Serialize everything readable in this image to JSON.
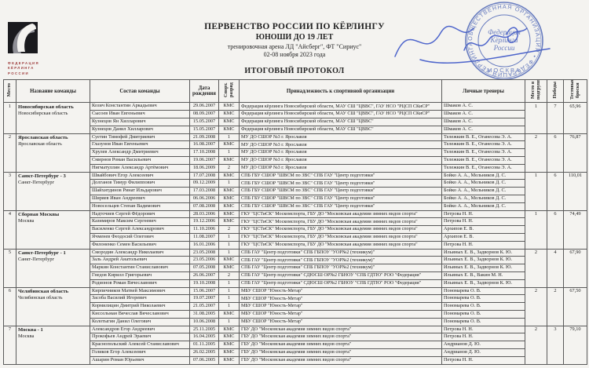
{
  "page": {
    "title1": "ПЕРВЕНСТВО РОССИИ ПО КЁРЛИНГУ",
    "title2": "ЮНОШИ ДО 19 ЛЕТ",
    "subtitle1": "тренировочная арена ЛД \"Айсберг\", ФТ \"Сириус\"",
    "subtitle2": "02-08 ноября 2023 года",
    "protocol_title": "ИТОГОВЫЙ ПРОТОКОЛ"
  },
  "logo": {
    "line1": "ФЕДЕРАЦИЯ",
    "line2": "КЁРЛИНГА",
    "line3": "РОССИИ"
  },
  "stamp": {
    "color": "#4a63b5",
    "ring_text": "ОБЩЕСТВЕННАЯ ОРГАНИЗАЦИЯ • ФЕДЕРАЦИЯ КЁРЛИНГА РОССИИ •",
    "center_line1": "Федерация",
    "center_line2": "Кёрлинга",
    "center_line3": "России",
    "city": "МОСКВА"
  },
  "table": {
    "headers": {
      "place": "Место",
      "team": "Название команды",
      "roster": "Состав команды",
      "dob": "Дата рождения",
      "rank": "Спорт. разряд",
      "org": "Принадлежность к спортивной организации",
      "coaches": "Личные тренеры",
      "group_place": "Место в подгруппе",
      "wins": "Победы",
      "throws": "Тестовые броски"
    },
    "teams": [
      {
        "place": "1",
        "name": "Новосибирская область",
        "region": "Новосибирская область",
        "group_place": "1",
        "wins": "7",
        "test_throws": "65,96",
        "members": [
          {
            "name": "Козич Константин Аркадьевич",
            "dob": "29.06.2007",
            "rank": "КМС",
            "org": "Федерация кёрлинга Новосибирской области, МАУ СШ \"ЦВВС\", ГАУ НСО \"РЦСП СКиСР\"",
            "coaches": "Шмаков А. С."
          },
          {
            "name": "Сысоев Иван Евгеньевич",
            "dob": "08.09.2007",
            "rank": "КМС",
            "org": "Федерация кёрлинга Новосибирской области, МАУ СШ \"ЦВВС\", ГАУ НСО \"РЦСП СКиСР\"",
            "coaches": "Шмаков А. С."
          },
          {
            "name": "Кузнецов Ян Хилларович",
            "dob": "15.05.2007",
            "rank": "КМС",
            "org": "Федерация кёрлинга Новосибирской области, МАУ СШ \"ЦВВС\"",
            "coaches": "Шмаков А. С."
          },
          {
            "name": "Кузнецов Данил Хилларович",
            "dob": "15.05.2007",
            "rank": "КМС",
            "org": "Федерация кёрлинга Новосибирской области, МАУ СШ \"ЦВВС\"",
            "coaches": "Шмаков А. С."
          }
        ]
      },
      {
        "place": "2",
        "name": "Ярославская область",
        "region": "Ярославская область",
        "group_place": "2",
        "wins": "6",
        "test_throws": "76,87",
        "members": [
          {
            "name": "Суетин Тимофей Дмитриевич",
            "dob": "21.09.2008",
            "rank": "1",
            "org": "МУ ДО СШОР №3 г. Ярославля",
            "coaches": "Тележкин В. Е., Оганесова Э. А."
          },
          {
            "name": "Глазунов Иван Евгеньевич",
            "dob": "16.08.2007",
            "rank": "КМС",
            "org": "МУ ДО СШОР №3 г. Ярославля",
            "coaches": "Тележкин В. Е., Оганесова Э. А."
          },
          {
            "name": "Хрулев Александр Дмитриевич",
            "dob": "17.10.2008",
            "rank": "1",
            "org": "МУ ДО СШОР №3 г. Ярославля",
            "coaches": "Тележкин В. Е., Оганесова Э. А."
          },
          {
            "name": "Смирнов Роман Васильевич",
            "dob": "19.06.2007",
            "rank": "КМС",
            "org": "МУ ДО СШОР №3 г. Ярославля",
            "coaches": "Тележкин В. Е., Оганесова Э. А."
          },
          {
            "name": "Нигматуллин Александр Артёмович",
            "dob": "18.06.2009",
            "rank": "2",
            "org": "МУ ДО СШОР №3 г. Ярославля",
            "coaches": "Тележкин В. Е., Оганесова Э. А."
          }
        ]
      },
      {
        "place": "3",
        "name": "Санкт-Петербург - 3",
        "region": "Санкт-Петербург",
        "group_place": "1",
        "wins": "6",
        "test_throws": "110,01",
        "members": [
          {
            "name": "Швайбович Егор Алексеевич",
            "dob": "17.07.2008",
            "rank": "КМС",
            "org": "СПБ ГБУ СШОР \"ШВСМ по ЗВС\" СПБ ГАУ \"Центр подготовки\"",
            "coaches": "Бойко А. А., Мельников Д. С."
          },
          {
            "name": "Долганов Тимур Филиппович",
            "dob": "09.12.2009",
            "rank": "1",
            "org": "СПБ ГБУ СШОР \"ШВСМ по ЗВС\" СПБ ГАУ \"Центр подготовки\"",
            "coaches": "Бойко А. А., Мельников Д. С."
          },
          {
            "name": "Шайхитдинов Ринат Ильдарович",
            "dob": "17.03.2008",
            "rank": "КМС",
            "org": "СПБ ГБУ СШОР \"ШВСМ по ЗВС\" СПБ ГАУ \"Центр подготовки\"",
            "coaches": "Бойко А. А., Мельников Д. С."
          },
          {
            "name": "Ширяев Иван Андреевич",
            "dob": "06.06.2006",
            "rank": "КМС",
            "org": "СПБ ГБУ СШОР \"ШВСМ по ЗВС\" СПБ ГАУ \"Центр подготовки\"",
            "coaches": "Бойко А. А., Мельников Д. С."
          },
          {
            "name": "Новосельцев Степан Вадимович",
            "dob": "07.08.2008",
            "rank": "КМС",
            "org": "СПБ ГБУ СШОР \"ШВСМ по ЗВС\" СПБ ГАУ \"Центр подготовки\"",
            "coaches": "Бойко А. А., Мельников Д. С."
          }
        ]
      },
      {
        "place": "4",
        "name": "Сборная Москвы",
        "region": "Москва",
        "group_place": "1",
        "wins": "6",
        "test_throws": "74,49",
        "members": [
          {
            "name": "Надточиев Сергей Фёдорович",
            "dob": "28.03.2006",
            "rank": "КМС",
            "org": "ГКУ \"ЦСТиСК\" Москомспорта, ГБУ ДО \"Московская академия зимних видов спорта\"",
            "coaches": "Петрова Н. Н."
          },
          {
            "name": "Казимиров Максим Сергеевич",
            "dob": "19.12.2006",
            "rank": "КМС",
            "org": "ГКУ \"ЦСТиСК\" Москомспорта, ГБУ ДО \"Московская академия зимних видов спорта\"",
            "coaches": "Петрова Н. Н."
          },
          {
            "name": "Василенко Сергей Александрович",
            "dob": "11.10.2006",
            "rank": "2",
            "org": "ГКУ \"ЦСТиСК\" Москомспорта, ГБУ ДО \"Московская академия зимних видов спорта\"",
            "coaches": "Архипов Е. В."
          },
          {
            "name": "Ячменев Феодосий Олегович",
            "dob": "11.08.2007",
            "rank": "1",
            "org": "ГКУ \"ЦСТиСК\" Москомспорта, ГБУ ДО \"Московская академия зимних видов спорта\"",
            "coaches": "Архипов Е. В."
          },
          {
            "name": "Филоненко Семен Васильевич",
            "dob": "16.01.2006",
            "rank": "1",
            "org": "ГКУ \"ЦСТиСК\" Москомспорта, ГБУ ДО \"Московская академия зимних видов спорта\"",
            "coaches": "Петрова Н. Н."
          }
        ]
      },
      {
        "place": "5",
        "name": "Санкт-Петербург - 1",
        "region": "Санкт-Петербург",
        "group_place": "2",
        "wins": "4",
        "test_throws": "67,90",
        "members": [
          {
            "name": "Смородин Александр Николаевич",
            "dob": "23.05.2008",
            "rank": "1",
            "org": "СПБ ГАУ \"Центр подготовки\" СПБ ГБПОУ \"УОР№2 (техникум)\"",
            "coaches": "Ильиных Е. В., Задворнов К. Ю."
          },
          {
            "name": "Заль Андрей Анатольевич",
            "dob": "23.05.2006",
            "rank": "КМС",
            "org": "СПБ ГАУ \"Центр подготовки\" СПБ ГБПОУ \"УОР№2 (техникум)\"",
            "coaches": "Ильиных Е. В., Задворнов К. Ю."
          },
          {
            "name": "Маркин Константин Станиславович",
            "dob": "07.05.2008",
            "rank": "КМС",
            "org": "СПБ ГАУ \"Центр подготовки\" СПБ ГБПОУ \"УОР№2 (техникум)\"",
            "coaches": "Ильиных Е. В., Задворнов К. Ю."
          },
          {
            "name": "Гнедов Кирилл Григорьевич",
            "dob": "26.06.2007",
            "rank": "2",
            "org": "СПБ ГАУ \"Центр подготовки\" СДЮСШ ОР№2 ГБНОУ \"СПБ ГДТЮ\" РОО \"Федерация\"",
            "coaches": "Ильиных Е. В., Вакин М. Н."
          },
          {
            "name": "Родионов Роман Вячеславович",
            "dob": "19.10.2008",
            "rank": "1",
            "org": "СПБ ГАУ \"Центр подготовки\" СДЮСШ ОР№2 ГБНОУ \"СПБ ГДТЮ\" РОО \"Федерация\"",
            "coaches": "Ильиных Е. В., Задворнов К. Ю."
          }
        ]
      },
      {
        "place": "6",
        "name": "Челябинская область",
        "region": "Челябинская область",
        "group_place": "2",
        "wins": "2",
        "test_throws": "67,50",
        "members": [
          {
            "name": "Кирпичников Матвей Максимович",
            "dob": "15.06.2007",
            "rank": "1",
            "org": "МБУ СШОР \"Юность-Метар\"",
            "coaches": "Пономарева О. В."
          },
          {
            "name": "Засоба Василий Игоревич",
            "dob": "19.07.2007",
            "rank": "1",
            "org": "МБУ СШОР \"Юность-Метар\"",
            "coaches": "Пономарева О. В."
          },
          {
            "name": "Кормилицин Дмитрий Николаевич",
            "dob": "21.05.2007",
            "rank": "1",
            "org": "МБУ СШОР \"Юность-Метар\"",
            "coaches": "Пономарева О. В."
          },
          {
            "name": "Киссельман Вячеслав Вячеславович",
            "dob": "31.08.2005",
            "rank": "КМС",
            "org": "МБУ СШОР \"Юность-Метар\"",
            "coaches": "Пономарева О. В."
          },
          {
            "name": "Колотыгин Данил Олегович",
            "dob": "10.06.2008",
            "rank": "1",
            "org": "МБУ СШОР \"Юность-Метар\"",
            "coaches": "Пономарева О. В."
          }
        ]
      },
      {
        "place": "7",
        "name": "Москва - 1",
        "region": "Москва",
        "group_place": "2",
        "wins": "3",
        "test_throws": "79,10",
        "members": [
          {
            "name": "Александров Егор Андреевич",
            "dob": "25.11.2005",
            "rank": "КМС",
            "org": "ГБУ ДО \"Московская академия зимних видов спорта\"",
            "coaches": "Петрова Н. Н."
          },
          {
            "name": "Прокофьев Андрей Эраевич",
            "dob": "16.04.2005",
            "rank": "КМС",
            "org": "ГБУ ДО \"Московская академия зимних видов спорта\"",
            "coaches": "Петрова Н. Н."
          },
          {
            "name": "Краснопольский Алексей Станиславович",
            "dob": "01.11.2005",
            "rank": "КМС",
            "org": "ГБУ ДО \"Московская академия зимних видов спорта\"",
            "coaches": "Андрианов Д. Ю."
          },
          {
            "name": "Голиков Егор Алексеевич",
            "dob": "26.02.2005",
            "rank": "КМС",
            "org": "ГБУ ДО \"Московская академия зимних видов спорта\"",
            "coaches": "Андрианов Д. Ю."
          },
          {
            "name": "Ашарин Роман Юрьевич",
            "dob": "07.06.2005",
            "rank": "КМС",
            "org": "ГБУ ДО \"Московская академия зимних видов спорта\"",
            "coaches": "Петрова Н. Н."
          }
        ]
      }
    ]
  }
}
